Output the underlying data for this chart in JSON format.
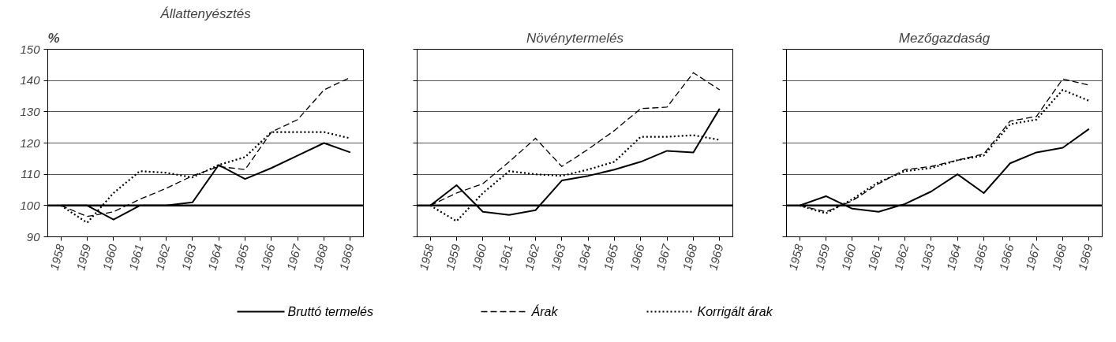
{
  "chart_data": [
    {
      "type": "line",
      "title": "Állattenyésztés",
      "ylabel": "%",
      "categories": [
        "1958",
        "1959",
        "1960",
        "1961",
        "1962",
        "1963",
        "1964",
        "1965",
        "1966",
        "1967",
        "1968",
        "1969"
      ],
      "ylim": [
        90,
        150
      ],
      "yticks": [
        90,
        100,
        110,
        120,
        130,
        140,
        150
      ],
      "grid": "y",
      "legend": "bottom",
      "ref_lines": [
        {
          "axis": "y",
          "value": 100,
          "label": null,
          "color": "#000000"
        }
      ],
      "series": [
        {
          "name": "Bruttó termelés",
          "color": "#000000",
          "line_style": "solid",
          "values": [
            100,
            100,
            95.5,
            100,
            100,
            101,
            113,
            108.5,
            112,
            116,
            120,
            117
          ]
        },
        {
          "name": "Árak",
          "color": "#000000",
          "line_style": "dashed",
          "values": [
            100,
            96.5,
            98,
            102,
            105.5,
            109.5,
            112.5,
            111.5,
            123.5,
            127.5,
            137,
            141
          ]
        },
        {
          "name": "Korrigált árak",
          "color": "#000000",
          "line_style": "dotted",
          "values": [
            100,
            94.5,
            104,
            111,
            110.5,
            109,
            113,
            115.5,
            123.5,
            123.5,
            123.5,
            121.5
          ]
        }
      ]
    },
    {
      "type": "line",
      "title": "Növénytermelés",
      "categories": [
        "1958",
        "1959",
        "1960",
        "1961",
        "1962",
        "1963",
        "1964",
        "1965",
        "1966",
        "1967",
        "1968",
        "1969"
      ],
      "ylim": [
        90,
        150
      ],
      "yticks": [
        90,
        100,
        110,
        120,
        130,
        140,
        150
      ],
      "grid": "y",
      "tick_labels": "x",
      "ref_lines": [
        {
          "axis": "y",
          "value": 100,
          "label": null,
          "color": "#000000"
        }
      ],
      "series": [
        {
          "color": "#000000",
          "line_style": "solid",
          "values": [
            100,
            106.5,
            98,
            97,
            98.5,
            108,
            109.5,
            111.5,
            114,
            117.5,
            117,
            131
          ]
        },
        {
          "color": "#000000",
          "line_style": "dashed",
          "values": [
            100,
            104,
            107,
            114,
            121.5,
            112.5,
            118,
            124,
            131,
            131.5,
            142.5,
            137
          ]
        },
        {
          "color": "#000000",
          "line_style": "dotted",
          "values": [
            100,
            95,
            104,
            111,
            110,
            109.5,
            111.5,
            114,
            122,
            122,
            122.5,
            121
          ]
        }
      ]
    },
    {
      "type": "line",
      "title": "Mezőgazdaság",
      "categories": [
        "1958",
        "1959",
        "1960",
        "1961",
        "1962",
        "1963",
        "1964",
        "1965",
        "1966",
        "1967",
        "1968",
        "1969"
      ],
      "ylim": [
        90,
        150
      ],
      "yticks": [
        90,
        100,
        110,
        120,
        130,
        140,
        150
      ],
      "grid": "y",
      "tick_labels": "x",
      "ref_lines": [
        {
          "axis": "y",
          "value": 100,
          "label": null,
          "color": "#000000"
        }
      ],
      "series": [
        {
          "color": "#000000",
          "line_style": "solid",
          "values": [
            100,
            103,
            99,
            98,
            100.5,
            104.5,
            110,
            104,
            113.5,
            117,
            118.5,
            124.5
          ]
        },
        {
          "color": "#000000",
          "line_style": "dashed",
          "values": [
            100,
            98,
            101.5,
            107,
            111.5,
            112.5,
            114.5,
            116.5,
            127,
            128.5,
            140.5,
            138.5
          ]
        },
        {
          "color": "#000000",
          "line_style": "dotted",
          "values": [
            100,
            97.5,
            102,
            107.5,
            111,
            112,
            114.5,
            116,
            126,
            127.5,
            137,
            133.5
          ]
        }
      ]
    }
  ]
}
